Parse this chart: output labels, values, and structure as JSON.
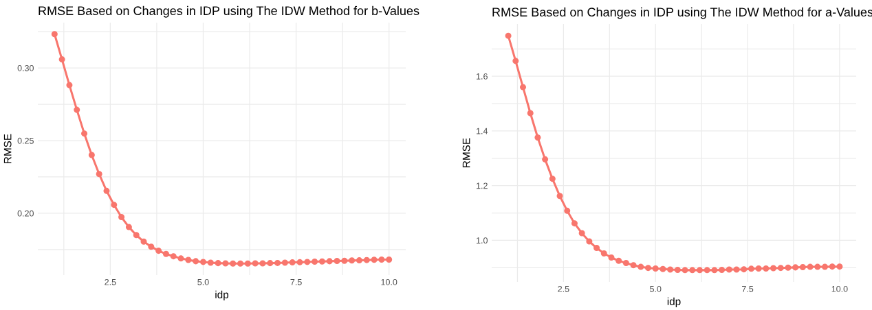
{
  "chart_data": [
    {
      "type": "line",
      "title": "RMSE Based on Changes in IDP using The IDW Method for b-Values",
      "xlabel": "idp",
      "ylabel": "RMSE",
      "marker": "circle",
      "line_style": "solid",
      "grid": true,
      "legend": false,
      "x": [
        1.0,
        1.2,
        1.4,
        1.6,
        1.8,
        2.0,
        2.2,
        2.4,
        2.6,
        2.8,
        3.0,
        3.2,
        3.4,
        3.6,
        3.8,
        4.0,
        4.2,
        4.4,
        4.6,
        4.8,
        5.0,
        5.2,
        5.4,
        5.6,
        5.8,
        6.0,
        6.2,
        6.4,
        6.6,
        6.8,
        7.0,
        7.2,
        7.4,
        7.6,
        7.8,
        8.0,
        8.2,
        8.4,
        8.6,
        8.8,
        9.0,
        9.2,
        9.4,
        9.6,
        9.8,
        10.0
      ],
      "series": [
        {
          "color": "#f8766d",
          "values": [
            0.3233,
            0.3059,
            0.2882,
            0.2712,
            0.2549,
            0.2401,
            0.227,
            0.2154,
            0.2058,
            0.1974,
            0.1905,
            0.185,
            0.1805,
            0.177,
            0.1742,
            0.172,
            0.1704,
            0.1689,
            0.1679,
            0.167,
            0.1665,
            0.166,
            0.1657,
            0.1655,
            0.1654,
            0.1654,
            0.1654,
            0.1655,
            0.1655,
            0.1657,
            0.1658,
            0.166,
            0.1662,
            0.1663,
            0.1665,
            0.1667,
            0.1668,
            0.167,
            0.1672,
            0.1673,
            0.1675,
            0.1676,
            0.1678,
            0.168,
            0.1681,
            0.1681
          ]
        }
      ],
      "xlim": [
        0.55,
        10.45
      ],
      "ylim": [
        0.1575,
        0.3312
      ],
      "xticks": [
        {
          "value": 1.25,
          "label": null
        },
        {
          "value": 2.5,
          "label": "2.5"
        },
        {
          "value": 3.75,
          "label": null
        },
        {
          "value": 5.0,
          "label": "5.0"
        },
        {
          "value": 6.25,
          "label": null
        },
        {
          "value": 7.5,
          "label": "7.5"
        },
        {
          "value": 8.75,
          "label": null
        },
        {
          "value": 10.0,
          "label": "10.0"
        }
      ],
      "yticks": [
        {
          "value": 0.175,
          "label": null
        },
        {
          "value": 0.2,
          "label": "0.20"
        },
        {
          "value": 0.225,
          "label": null
        },
        {
          "value": 0.25,
          "label": "0.25"
        },
        {
          "value": 0.275,
          "label": null
        },
        {
          "value": 0.3,
          "label": "0.30"
        },
        {
          "value": 0.325,
          "label": null
        }
      ]
    },
    {
      "type": "line",
      "title": "RMSE Based on Changes in IDP using The IDW Method for a-Values",
      "xlabel": "idp",
      "ylabel": "RMSE",
      "marker": "circle",
      "line_style": "solid",
      "grid": true,
      "legend": false,
      "x": [
        1.0,
        1.2,
        1.4,
        1.6,
        1.8,
        2.0,
        2.2,
        2.4,
        2.6,
        2.8,
        3.0,
        3.2,
        3.4,
        3.6,
        3.8,
        4.0,
        4.2,
        4.4,
        4.6,
        4.8,
        5.0,
        5.2,
        5.4,
        5.6,
        5.8,
        6.0,
        6.2,
        6.4,
        6.6,
        6.8,
        7.0,
        7.2,
        7.4,
        7.6,
        7.8,
        8.0,
        8.2,
        8.4,
        8.6,
        8.8,
        9.0,
        9.2,
        9.4,
        9.6,
        9.8,
        10.0
      ],
      "series": [
        {
          "color": "#f8766d",
          "values": [
            1.748,
            1.656,
            1.56,
            1.465,
            1.376,
            1.296,
            1.225,
            1.162,
            1.108,
            1.062,
            1.026,
            0.996,
            0.972,
            0.952,
            0.937,
            0.925,
            0.917,
            0.909,
            0.903,
            0.899,
            0.897,
            0.895,
            0.893,
            0.892,
            0.891,
            0.891,
            0.891,
            0.891,
            0.891,
            0.892,
            0.893,
            0.893,
            0.894,
            0.896,
            0.897,
            0.897,
            0.898,
            0.899,
            0.9,
            0.901,
            0.902,
            0.903,
            0.903,
            0.903,
            0.904,
            0.904
          ]
        }
      ],
      "xlim": [
        0.55,
        10.45
      ],
      "ylim": [
        0.848,
        1.791
      ],
      "xticks": [
        {
          "value": 1.25,
          "label": null
        },
        {
          "value": 2.5,
          "label": "2.5"
        },
        {
          "value": 3.75,
          "label": null
        },
        {
          "value": 5.0,
          "label": "5.0"
        },
        {
          "value": 6.25,
          "label": null
        },
        {
          "value": 7.5,
          "label": "7.5"
        },
        {
          "value": 8.75,
          "label": null
        },
        {
          "value": 10.0,
          "label": "10.0"
        }
      ],
      "yticks": [
        {
          "value": 0.9,
          "label": null
        },
        {
          "value": 1.0,
          "label": "1.0"
        },
        {
          "value": 1.1,
          "label": null
        },
        {
          "value": 1.2,
          "label": "1.2"
        },
        {
          "value": 1.3,
          "label": null
        },
        {
          "value": 1.4,
          "label": "1.4"
        },
        {
          "value": 1.5,
          "label": null
        },
        {
          "value": 1.6,
          "label": "1.6"
        },
        {
          "value": 1.7,
          "label": null
        }
      ]
    }
  ]
}
